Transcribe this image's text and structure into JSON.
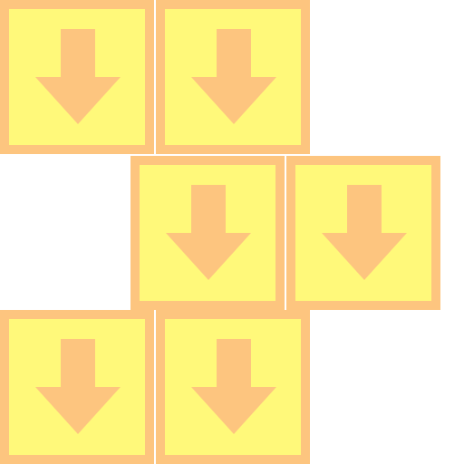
{
  "colors": {
    "tile_fill": "#fff97a",
    "tile_border": "#fdc57f",
    "arrow": "#fdc57f",
    "background": "#ffffff"
  },
  "tiles": [
    {
      "icon": "arrow-down-icon"
    },
    {
      "icon": "arrow-down-icon"
    },
    {
      "icon": "arrow-down-icon"
    },
    {
      "icon": "arrow-down-icon"
    },
    {
      "icon": "arrow-down-icon"
    },
    {
      "icon": "arrow-down-icon"
    }
  ]
}
